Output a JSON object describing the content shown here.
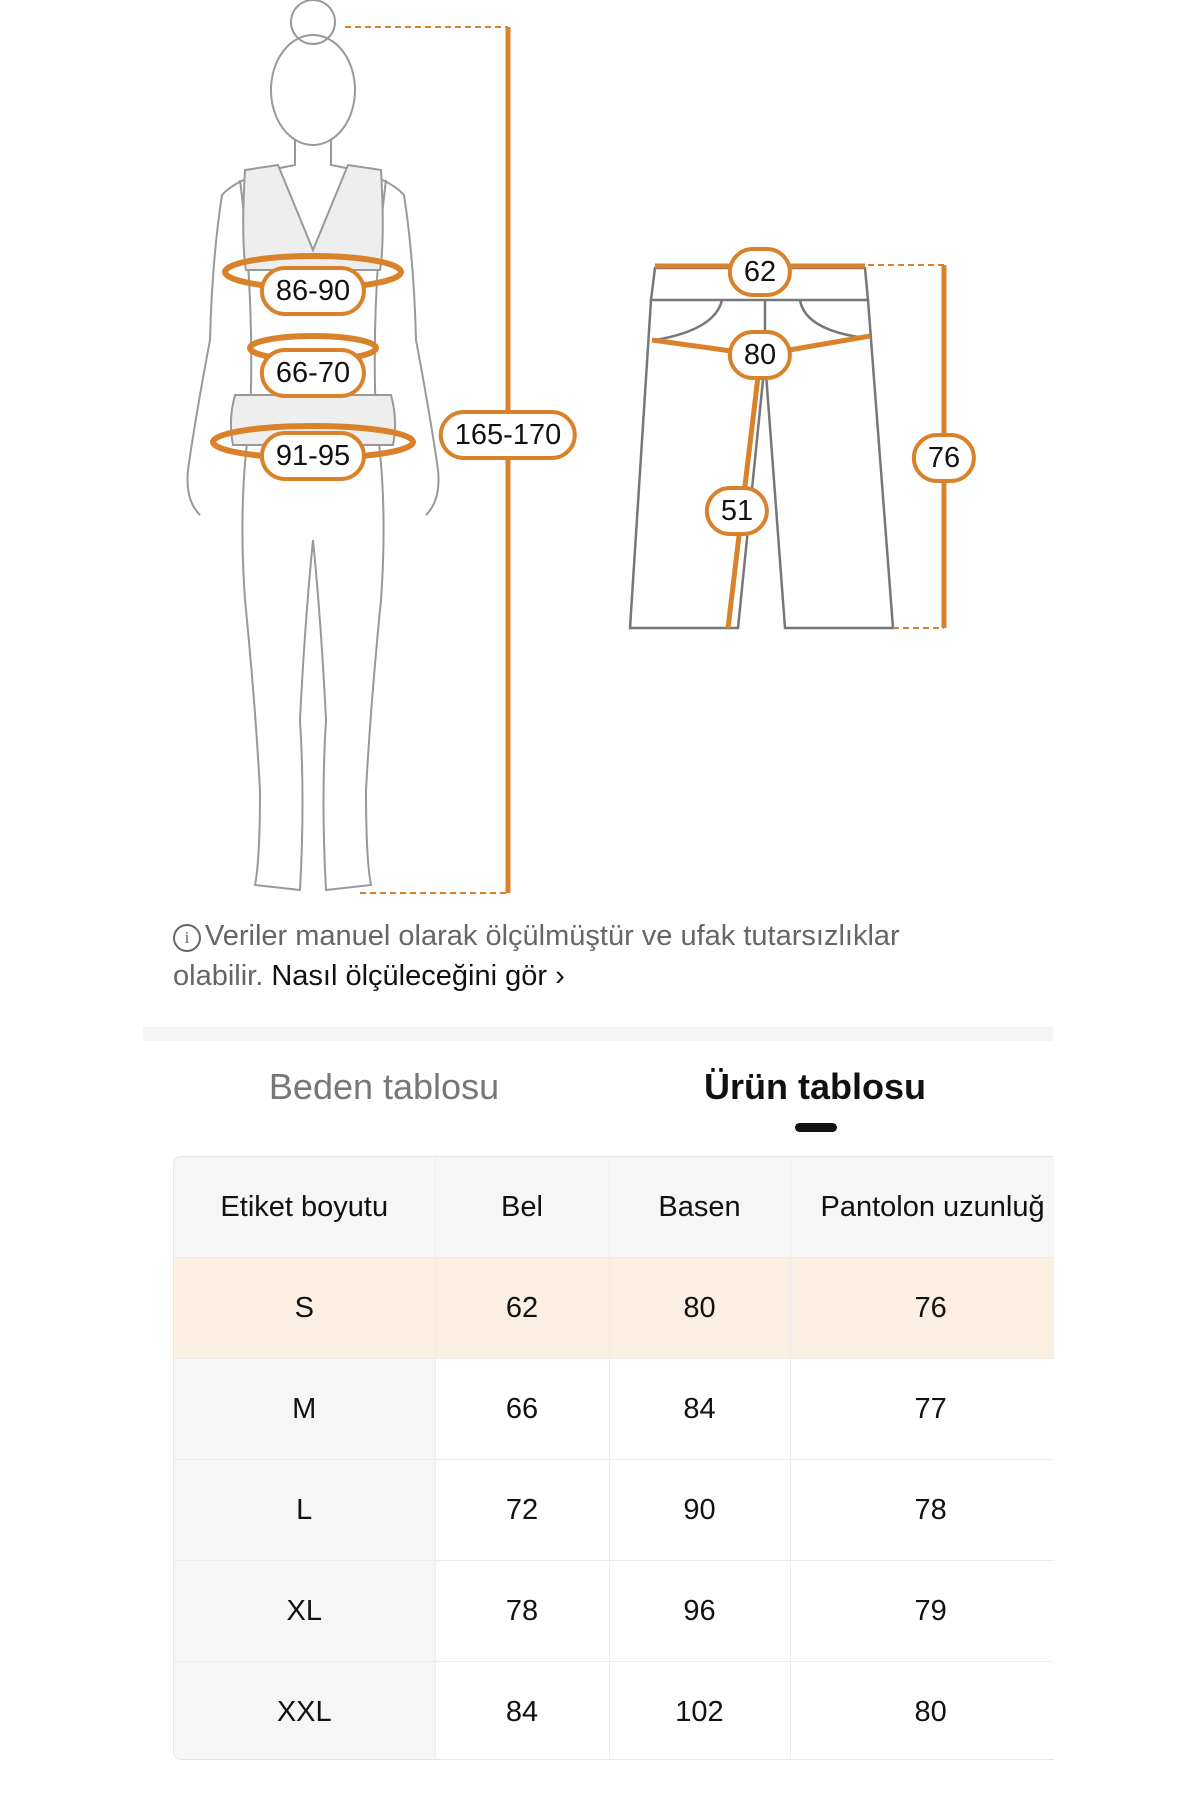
{
  "colors": {
    "accent": "#d9822b",
    "highlight_row": "#fbefe2"
  },
  "body_figure": {
    "height": "165-170",
    "bust": "86-90",
    "waist": "66-70",
    "hips": "91-95"
  },
  "pants_figure": {
    "waist": "62",
    "hip": "80",
    "inseam": "51",
    "length": "76"
  },
  "info": {
    "icon": "info-icon",
    "text": "Veriler manuel olarak ölçülmüştür ve ufak tutarsızlıklar olabilir.",
    "link": "Nasıl ölçüleceğini gör",
    "link_icon": "chevron-right-icon"
  },
  "tabs": [
    {
      "label": "Beden tablosu",
      "active": false
    },
    {
      "label": "Ürün tablosu",
      "active": true
    }
  ],
  "table": {
    "headers": [
      "Etiket boyutu",
      "Bel",
      "Basen",
      "Pantolon uzunluğ"
    ],
    "rows": [
      [
        "S",
        "62",
        "80",
        "76"
      ],
      [
        "M",
        "66",
        "84",
        "77"
      ],
      [
        "L",
        "72",
        "90",
        "78"
      ],
      [
        "XL",
        "78",
        "96",
        "79"
      ],
      [
        "XXL",
        "84",
        "102",
        "80"
      ]
    ],
    "highlighted_row": 0
  }
}
